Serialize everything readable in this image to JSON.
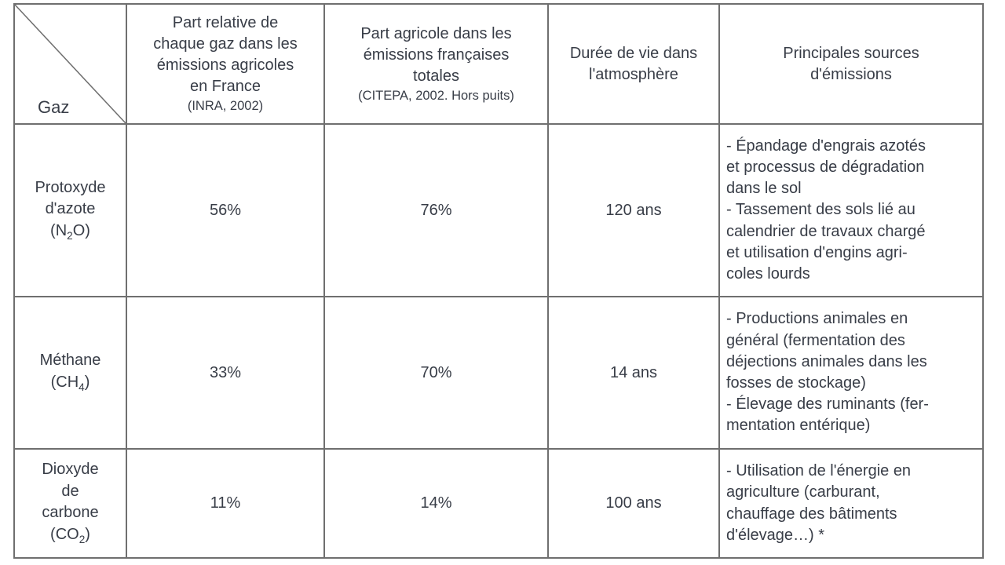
{
  "colors": {
    "text": "#383d47",
    "border": "#6f6f6f",
    "background": "#ffffff"
  },
  "table": {
    "corner_label": "Gaz",
    "columns": [
      {
        "title": "Part relative de\nchaque gaz dans les\némissions agricoles\nen France",
        "note": "(INRA, 2002)"
      },
      {
        "title": "Part agricole dans les\némissions françaises\ntotales",
        "note": "(CITEPA, 2002. Hors puits)"
      },
      {
        "title": "Durée de vie dans\nl'atmosphère",
        "note": ""
      },
      {
        "title": "Principales sources\nd'émissions",
        "note": ""
      }
    ],
    "rows": [
      {
        "gas_name": "Protoxyde\nd'azote",
        "formula": {
          "pre": "(N",
          "sub": "2",
          "post": "O)"
        },
        "share_in_agricultural_emissions": "56%",
        "agricultural_share_of_french_totals": "76%",
        "atmospheric_lifetime": "120 ans",
        "sources": [
          "- Épandage d'engrais azotés\net processus de dégradation\ndans le sol",
          "- Tassement des sols lié au\ncalendrier de travaux chargé\net utilisation d'engins agri-\ncoles lourds"
        ]
      },
      {
        "gas_name": "Méthane",
        "formula": {
          "pre": "(CH",
          "sub": "4",
          "post": ")"
        },
        "share_in_agricultural_emissions": "33%",
        "agricultural_share_of_french_totals": "70%",
        "atmospheric_lifetime": "14 ans",
        "sources": [
          "- Productions animales en\ngénéral (fermentation des\ndéjections animales dans les\nfosses de stockage)",
          "- Élevage des ruminants (fer-\nmentation entérique)"
        ]
      },
      {
        "gas_name": "Dioxyde\nde\ncarbone",
        "formula": {
          "pre": "(CO",
          "sub": "2",
          "post": ")"
        },
        "share_in_agricultural_emissions": "11%",
        "agricultural_share_of_french_totals": "14%",
        "atmospheric_lifetime": "100 ans",
        "sources": [
          "- Utilisation de l'énergie en\nagriculture (carburant,\nchauffage des bâtiments\nd'élevage…) *"
        ]
      }
    ]
  }
}
